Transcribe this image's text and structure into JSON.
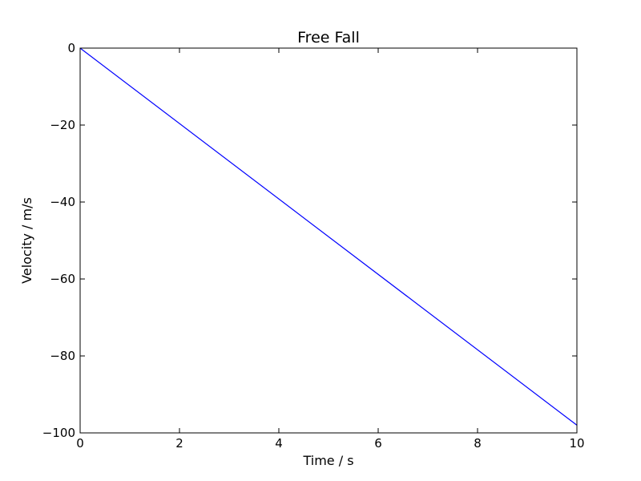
{
  "chart_data": {
    "type": "line",
    "title": "Free Fall",
    "xlabel": "Time / s",
    "ylabel": "Velocity / m/s",
    "xlim": [
      0,
      10
    ],
    "ylim": [
      -100,
      0
    ],
    "xticks": [
      "0",
      "2",
      "4",
      "6",
      "8",
      "10"
    ],
    "yticks": [
      "0",
      "−20",
      "−40",
      "−60",
      "−80",
      "−100"
    ],
    "grid": false,
    "series": [
      {
        "color": "#0000ff",
        "x": [
          0,
          10
        ],
        "y": [
          0,
          -98
        ]
      }
    ]
  }
}
